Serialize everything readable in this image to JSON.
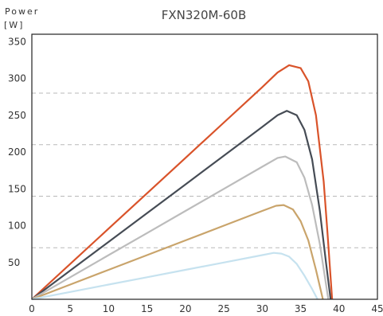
{
  "chart_data": {
    "type": "line",
    "title": "FXN320M-60B",
    "ylabel_line1": "Power",
    "ylabel_line2": "[W]",
    "xlabel": "",
    "xlim": [
      0,
      45
    ],
    "ylim": [
      0,
      360
    ],
    "x_ticks": [
      0,
      5,
      10,
      15,
      20,
      25,
      30,
      35,
      40,
      45
    ],
    "y_ticks": [
      50,
      100,
      150,
      200,
      250,
      300,
      350
    ],
    "grid_dashed_y": [
      70,
      140,
      210,
      280
    ],
    "series": [
      {
        "color": "#d9532a",
        "points": [
          [
            0,
            0
          ],
          [
            5,
            48
          ],
          [
            10,
            96
          ],
          [
            15,
            144
          ],
          [
            20,
            192
          ],
          [
            25,
            240
          ],
          [
            30,
            288
          ],
          [
            32,
            308
          ],
          [
            33.5,
            318
          ],
          [
            35,
            314
          ],
          [
            36,
            296
          ],
          [
            37,
            250
          ],
          [
            38,
            160
          ],
          [
            38.5,
            90
          ],
          [
            39.1,
            0
          ]
        ]
      },
      {
        "color": "#464c55",
        "points": [
          [
            0,
            0
          ],
          [
            5,
            39
          ],
          [
            10,
            78
          ],
          [
            15,
            117
          ],
          [
            20,
            156
          ],
          [
            25,
            195
          ],
          [
            30,
            234
          ],
          [
            32,
            250
          ],
          [
            33.2,
            256
          ],
          [
            34.5,
            250
          ],
          [
            35.5,
            230
          ],
          [
            36.5,
            190
          ],
          [
            37.5,
            120
          ],
          [
            38.3,
            50
          ],
          [
            38.9,
            0
          ]
        ]
      },
      {
        "color": "#bcbcbc",
        "points": [
          [
            0,
            0
          ],
          [
            5,
            30
          ],
          [
            10,
            60
          ],
          [
            15,
            90
          ],
          [
            20,
            120
          ],
          [
            25,
            150
          ],
          [
            30,
            180
          ],
          [
            32,
            192
          ],
          [
            33,
            194
          ],
          [
            34.5,
            186
          ],
          [
            35.5,
            165
          ],
          [
            36.5,
            128
          ],
          [
            37.5,
            75
          ],
          [
            38.6,
            0
          ]
        ]
      },
      {
        "color": "#c9a46b",
        "points": [
          [
            0,
            0
          ],
          [
            5,
            20
          ],
          [
            10,
            40
          ],
          [
            15,
            60
          ],
          [
            20,
            80
          ],
          [
            25,
            100
          ],
          [
            30,
            120
          ],
          [
            31.8,
            127
          ],
          [
            32.8,
            128
          ],
          [
            34,
            122
          ],
          [
            35,
            106
          ],
          [
            36,
            80
          ],
          [
            37,
            40
          ],
          [
            37.9,
            0
          ]
        ]
      },
      {
        "color": "#c6e2ef",
        "points": [
          [
            0,
            0
          ],
          [
            5,
            10
          ],
          [
            10,
            20
          ],
          [
            15,
            30
          ],
          [
            20,
            40
          ],
          [
            25,
            50
          ],
          [
            30,
            60
          ],
          [
            31.5,
            63
          ],
          [
            32.5,
            62
          ],
          [
            33.5,
            58
          ],
          [
            34.5,
            48
          ],
          [
            35.5,
            32
          ],
          [
            36.5,
            14
          ],
          [
            37.2,
            0
          ]
        ]
      }
    ]
  }
}
